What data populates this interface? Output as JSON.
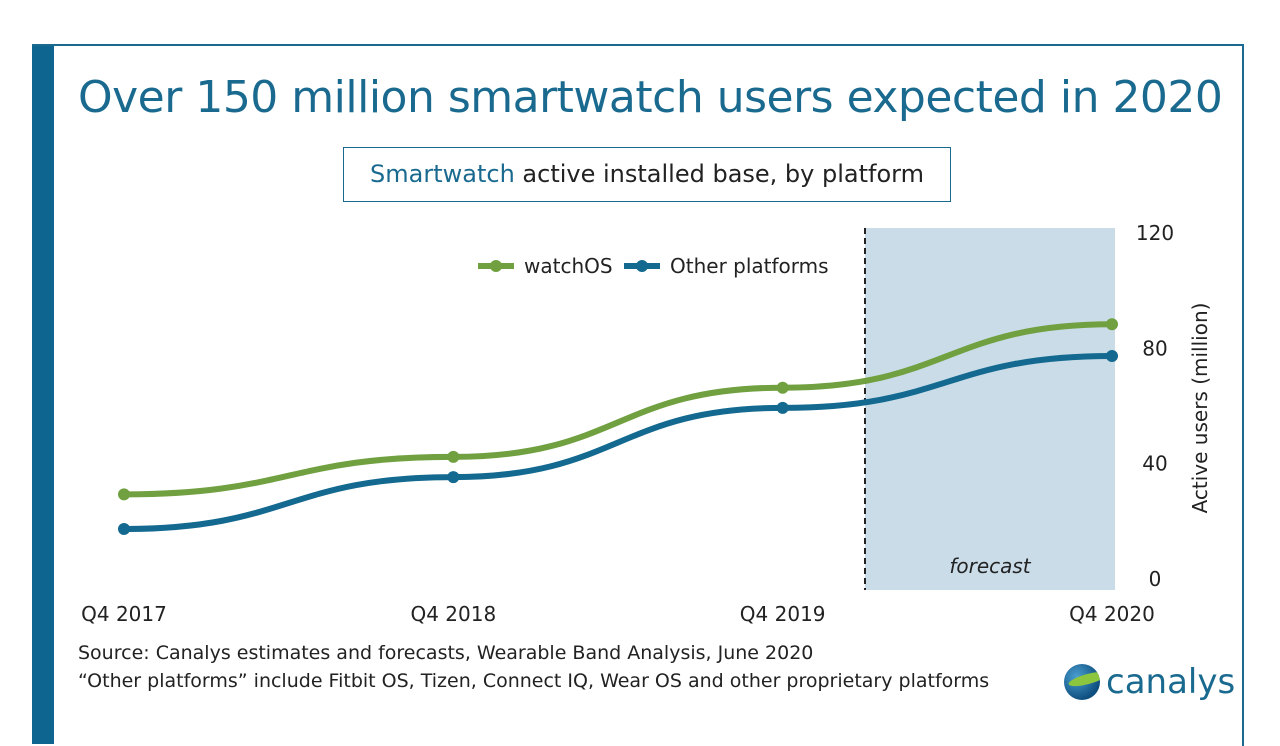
{
  "title": "Over 150 million smartwatch users expected in 2020",
  "subtitle_highlight": "Smartwatch",
  "subtitle_rest": " active installed base, by platform",
  "source_line1": "Source: Canalys estimates and forecasts, Wearable Band Analysis, June 2020",
  "source_line2": "“Other platforms” include Fitbit OS, Tizen, Connect IQ, Wear OS and other proprietary platforms",
  "logo_text": "canalys",
  "chart_data": {
    "type": "line",
    "categories": [
      "Q4 2017",
      "Q4 2018",
      "Q4 2019",
      "Q4 2020"
    ],
    "series": [
      {
        "name": "watchOS",
        "color": "#70a040",
        "values": [
          29,
          42,
          66,
          88
        ]
      },
      {
        "name": "Other platforms",
        "color": "#13698f",
        "values": [
          17,
          35,
          59,
          77
        ]
      }
    ],
    "ylabel": "Active users (million)",
    "ylim": [
      0,
      120
    ],
    "yticks": [
      0,
      40,
      80,
      120
    ],
    "forecast_label": "forecast",
    "forecast_start": 2.25,
    "legend": "top-center"
  }
}
